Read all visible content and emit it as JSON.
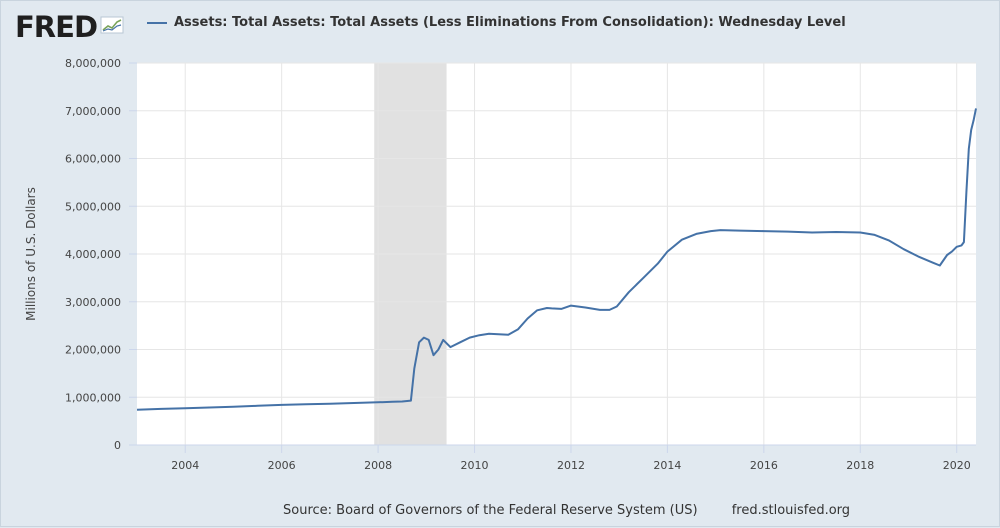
{
  "header": {
    "logo_text": "FRED",
    "logo_icon": "line-chart-icon"
  },
  "footer": {
    "source_text": "Source: Board of Governors of the Federal Reserve System (US)",
    "site_text": "fred.stlouisfed.org"
  },
  "colors": {
    "background": "#e1e9f0",
    "plot_background": "#ffffff",
    "series_line": "#4572a7",
    "recession_shade": "#e1e1e1",
    "grid": "#e6e6e6"
  },
  "chart_data": {
    "type": "line",
    "title": "",
    "xlabel": "",
    "ylabel": "Millions of U.S. Dollars",
    "xlim": [
      2003.0,
      2020.4
    ],
    "ylim": [
      0,
      8000000
    ],
    "x_ticks": [
      2004,
      2006,
      2008,
      2010,
      2012,
      2014,
      2016,
      2018,
      2020
    ],
    "y_ticks": [
      0,
      1000000,
      2000000,
      3000000,
      4000000,
      5000000,
      6000000,
      7000000,
      8000000
    ],
    "x_tick_labels": [
      "2004",
      "2006",
      "2008",
      "2010",
      "2012",
      "2014",
      "2016",
      "2018",
      "2020"
    ],
    "y_tick_labels": [
      "0",
      "1,000,000",
      "2,000,000",
      "3,000,000",
      "4,000,000",
      "5,000,000",
      "6,000,000",
      "7,000,000",
      "8,000,000"
    ],
    "recessions": [
      {
        "start": 2007.92,
        "end": 2009.42
      }
    ],
    "grid": true,
    "legend": "top-left",
    "series": [
      {
        "name": "Assets: Total Assets: Total Assets (Less Eliminations From Consolidation): Wednesday Level",
        "x": [
          2003.0,
          2003.5,
          2004.0,
          2004.5,
          2005.0,
          2005.5,
          2006.0,
          2006.5,
          2007.0,
          2007.5,
          2008.0,
          2008.3,
          2008.5,
          2008.68,
          2008.75,
          2008.85,
          2008.95,
          2009.05,
          2009.15,
          2009.25,
          2009.35,
          2009.5,
          2009.7,
          2009.9,
          2010.1,
          2010.3,
          2010.5,
          2010.7,
          2010.9,
          2011.1,
          2011.3,
          2011.5,
          2011.6,
          2011.8,
          2012.0,
          2012.3,
          2012.6,
          2012.8,
          2012.95,
          2013.2,
          2013.5,
          2013.8,
          2014.0,
          2014.3,
          2014.6,
          2014.9,
          2015.1,
          2015.5,
          2016.0,
          2016.5,
          2017.0,
          2017.5,
          2018.0,
          2018.3,
          2018.6,
          2018.9,
          2019.2,
          2019.5,
          2019.65,
          2019.8,
          2019.9,
          2020.0,
          2020.1,
          2020.15,
          2020.2,
          2020.25,
          2020.3,
          2020.35,
          2020.4
        ],
        "values": [
          740000,
          755000,
          770000,
          785000,
          800000,
          820000,
          840000,
          855000,
          865000,
          880000,
          895000,
          905000,
          910000,
          930000,
          1600000,
          2150000,
          2250000,
          2200000,
          1880000,
          2000000,
          2200000,
          2050000,
          2150000,
          2250000,
          2300000,
          2330000,
          2320000,
          2310000,
          2420000,
          2650000,
          2820000,
          2870000,
          2860000,
          2850000,
          2920000,
          2880000,
          2830000,
          2830000,
          2900000,
          3200000,
          3500000,
          3800000,
          4050000,
          4300000,
          4420000,
          4480000,
          4500000,
          4490000,
          4480000,
          4470000,
          4450000,
          4460000,
          4450000,
          4400000,
          4280000,
          4100000,
          3950000,
          3820000,
          3760000,
          3980000,
          4050000,
          4150000,
          4180000,
          4250000,
          5300000,
          6200000,
          6600000,
          6800000,
          7050000
        ]
      }
    ]
  }
}
